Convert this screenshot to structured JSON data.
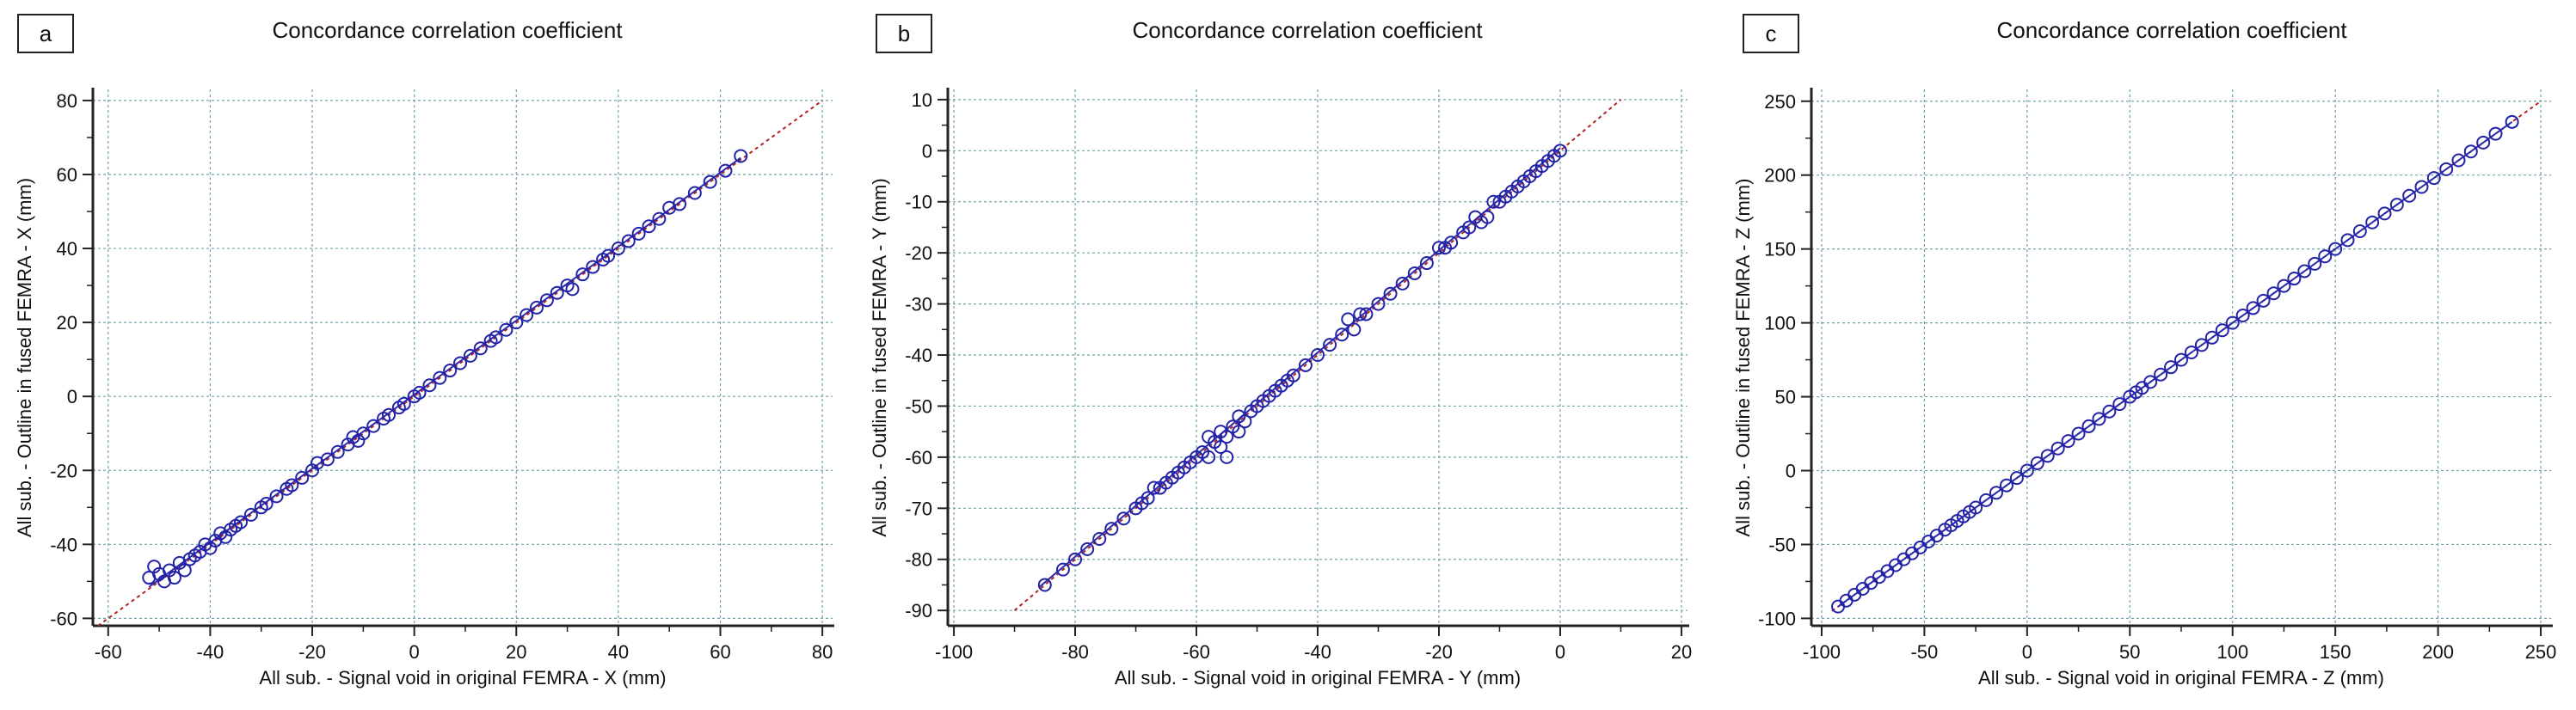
{
  "chart_data": [
    {
      "type": "scatter",
      "panel_label": "a",
      "title": "Concordance correlation coefficient",
      "xlabel": "All sub. - Signal void in original FEMRA - X (mm)",
      "ylabel": "All sub. - Outline in fused FEMRA - X (mm)",
      "xlim": [
        -63,
        82
      ],
      "ylim": [
        -62,
        83
      ],
      "xticks": [
        -60,
        -40,
        -20,
        0,
        20,
        40,
        60,
        80
      ],
      "yticks": [
        -60,
        -40,
        -20,
        0,
        20,
        40,
        60,
        80
      ],
      "grid": true,
      "identity_line": [
        [
          -62,
          -62
        ],
        [
          80,
          80
        ]
      ],
      "fit_line": [
        [
          -52,
          -51.5
        ],
        [
          64,
          64.5
        ]
      ],
      "points": [
        [
          -52,
          -49
        ],
        [
          -51,
          -46
        ],
        [
          -50,
          -48
        ],
        [
          -49,
          -50
        ],
        [
          -48,
          -47
        ],
        [
          -47,
          -49
        ],
        [
          -46,
          -45
        ],
        [
          -45,
          -47
        ],
        [
          -44,
          -44
        ],
        [
          -43,
          -43
        ],
        [
          -42,
          -42
        ],
        [
          -41,
          -40
        ],
        [
          -40,
          -41
        ],
        [
          -39,
          -39
        ],
        [
          -38,
          -37
        ],
        [
          -37,
          -38
        ],
        [
          -36,
          -36
        ],
        [
          -35,
          -35
        ],
        [
          -34,
          -34
        ],
        [
          -32,
          -32
        ],
        [
          -30,
          -30
        ],
        [
          -29,
          -29
        ],
        [
          -27,
          -27
        ],
        [
          -25,
          -25
        ],
        [
          -24,
          -24
        ],
        [
          -22,
          -22
        ],
        [
          -20,
          -20
        ],
        [
          -19,
          -18
        ],
        [
          -17,
          -17
        ],
        [
          -15,
          -15
        ],
        [
          -13,
          -13
        ],
        [
          -12,
          -11
        ],
        [
          -11,
          -12
        ],
        [
          -10,
          -10
        ],
        [
          -8,
          -8
        ],
        [
          -6,
          -6
        ],
        [
          -5,
          -5
        ],
        [
          -3,
          -3
        ],
        [
          -2,
          -2
        ],
        [
          0,
          0
        ],
        [
          1,
          1
        ],
        [
          3,
          3
        ],
        [
          5,
          5
        ],
        [
          7,
          7
        ],
        [
          9,
          9
        ],
        [
          11,
          11
        ],
        [
          13,
          13
        ],
        [
          15,
          15
        ],
        [
          16,
          16
        ],
        [
          18,
          18
        ],
        [
          20,
          20
        ],
        [
          22,
          22
        ],
        [
          24,
          24
        ],
        [
          26,
          26
        ],
        [
          28,
          28
        ],
        [
          30,
          30
        ],
        [
          31,
          29
        ],
        [
          33,
          33
        ],
        [
          35,
          35
        ],
        [
          37,
          37
        ],
        [
          38,
          38
        ],
        [
          40,
          40
        ],
        [
          42,
          42
        ],
        [
          44,
          44
        ],
        [
          46,
          46
        ],
        [
          48,
          48
        ],
        [
          50,
          51
        ],
        [
          52,
          52
        ],
        [
          55,
          55
        ],
        [
          58,
          58
        ],
        [
          61,
          61
        ],
        [
          64,
          65
        ]
      ]
    },
    {
      "type": "scatter",
      "panel_label": "b",
      "title": "Concordance correlation coefficient",
      "xlabel": "All sub. - Signal void in original FEMRA - Y (mm)",
      "ylabel": "All sub. - Outline in fused FEMRA - Y (mm)",
      "xlim": [
        -101,
        21
      ],
      "ylim": [
        -93,
        12
      ],
      "xticks": [
        -100,
        -80,
        -60,
        -40,
        -20,
        0,
        20
      ],
      "yticks": [
        -90,
        -80,
        -70,
        -60,
        -50,
        -40,
        -30,
        -20,
        -10,
        0,
        10
      ],
      "grid": true,
      "identity_line": [
        [
          -90,
          -90
        ],
        [
          10,
          10
        ]
      ],
      "fit_line": [
        [
          -86,
          -85.5
        ],
        [
          0,
          0.5
        ]
      ],
      "points": [
        [
          -85,
          -85
        ],
        [
          -82,
          -82
        ],
        [
          -80,
          -80
        ],
        [
          -78,
          -78
        ],
        [
          -76,
          -76
        ],
        [
          -74,
          -74
        ],
        [
          -72,
          -72
        ],
        [
          -70,
          -70
        ],
        [
          -69,
          -69
        ],
        [
          -68,
          -68
        ],
        [
          -67,
          -66
        ],
        [
          -66,
          -66
        ],
        [
          -65,
          -65
        ],
        [
          -64,
          -64
        ],
        [
          -63,
          -63
        ],
        [
          -62,
          -62
        ],
        [
          -61,
          -61
        ],
        [
          -60,
          -60
        ],
        [
          -59,
          -59
        ],
        [
          -58,
          -56
        ],
        [
          -58,
          -60
        ],
        [
          -57,
          -57
        ],
        [
          -56,
          -58
        ],
        [
          -56,
          -55
        ],
        [
          -55,
          -56
        ],
        [
          -55,
          -60
        ],
        [
          -54,
          -54
        ],
        [
          -53,
          -52
        ],
        [
          -53,
          -55
        ],
        [
          -52,
          -53
        ],
        [
          -51,
          -51
        ],
        [
          -50,
          -50
        ],
        [
          -49,
          -49
        ],
        [
          -48,
          -48
        ],
        [
          -47,
          -47
        ],
        [
          -46,
          -46
        ],
        [
          -45,
          -45
        ],
        [
          -44,
          -44
        ],
        [
          -42,
          -42
        ],
        [
          -40,
          -40
        ],
        [
          -38,
          -38
        ],
        [
          -36,
          -36
        ],
        [
          -35,
          -33
        ],
        [
          -34,
          -35
        ],
        [
          -33,
          -32
        ],
        [
          -32,
          -32
        ],
        [
          -30,
          -30
        ],
        [
          -28,
          -28
        ],
        [
          -26,
          -26
        ],
        [
          -24,
          -24
        ],
        [
          -22,
          -22
        ],
        [
          -20,
          -19
        ],
        [
          -19,
          -19
        ],
        [
          -18,
          -18
        ],
        [
          -16,
          -16
        ],
        [
          -15,
          -15
        ],
        [
          -14,
          -13
        ],
        [
          -13,
          -14
        ],
        [
          -12,
          -13
        ],
        [
          -11,
          -10
        ],
        [
          -10,
          -10
        ],
        [
          -9,
          -9
        ],
        [
          -8,
          -8
        ],
        [
          -7,
          -7
        ],
        [
          -6,
          -6
        ],
        [
          -5,
          -5
        ],
        [
          -4,
          -4
        ],
        [
          -3,
          -3
        ],
        [
          -2,
          -2
        ],
        [
          -1,
          -1
        ],
        [
          0,
          0
        ]
      ]
    },
    {
      "type": "scatter",
      "panel_label": "c",
      "title": "Concordance correlation coefficient",
      "xlabel": "All sub. - Signal void in original FEMRA - Z (mm)",
      "ylabel": "All sub. - Outline in fused FEMRA - Z (mm)",
      "xlim": [
        -105,
        255
      ],
      "ylim": [
        -105,
        258
      ],
      "xticks": [
        -100,
        -50,
        0,
        50,
        100,
        150,
        200,
        250
      ],
      "yticks": [
        -100,
        -50,
        0,
        50,
        100,
        150,
        200,
        250
      ],
      "grid": true,
      "identity_line": [
        [
          -95,
          -95
        ],
        [
          250,
          250
        ]
      ],
      "fit_line": [
        [
          -92,
          -92
        ],
        [
          236,
          236
        ]
      ],
      "points": [
        [
          -92,
          -92
        ],
        [
          -88,
          -88
        ],
        [
          -84,
          -84
        ],
        [
          -80,
          -80
        ],
        [
          -76,
          -76
        ],
        [
          -72,
          -72
        ],
        [
          -68,
          -68
        ],
        [
          -64,
          -64
        ],
        [
          -60,
          -60
        ],
        [
          -56,
          -56
        ],
        [
          -52,
          -52
        ],
        [
          -48,
          -48
        ],
        [
          -44,
          -44
        ],
        [
          -40,
          -40
        ],
        [
          -37,
          -37
        ],
        [
          -34,
          -34
        ],
        [
          -31,
          -31
        ],
        [
          -28,
          -28
        ],
        [
          -25,
          -25
        ],
        [
          -20,
          -20
        ],
        [
          -15,
          -15
        ],
        [
          -10,
          -10
        ],
        [
          -5,
          -5
        ],
        [
          0,
          0
        ],
        [
          5,
          5
        ],
        [
          10,
          10
        ],
        [
          15,
          15
        ],
        [
          20,
          20
        ],
        [
          25,
          25
        ],
        [
          30,
          30
        ],
        [
          35,
          35
        ],
        [
          40,
          40
        ],
        [
          45,
          45
        ],
        [
          50,
          50
        ],
        [
          53,
          53
        ],
        [
          56,
          56
        ],
        [
          60,
          60
        ],
        [
          65,
          65
        ],
        [
          70,
          70
        ],
        [
          75,
          75
        ],
        [
          80,
          80
        ],
        [
          85,
          85
        ],
        [
          90,
          90
        ],
        [
          95,
          95
        ],
        [
          100,
          100
        ],
        [
          105,
          105
        ],
        [
          110,
          110
        ],
        [
          115,
          115
        ],
        [
          120,
          120
        ],
        [
          125,
          125
        ],
        [
          130,
          130
        ],
        [
          135,
          135
        ],
        [
          140,
          140
        ],
        [
          145,
          145
        ],
        [
          150,
          150
        ],
        [
          156,
          156
        ],
        [
          162,
          162
        ],
        [
          168,
          168
        ],
        [
          174,
          174
        ],
        [
          180,
          180
        ],
        [
          186,
          186
        ],
        [
          192,
          192
        ],
        [
          198,
          198
        ],
        [
          204,
          204
        ],
        [
          210,
          210
        ],
        [
          216,
          216
        ],
        [
          222,
          222
        ],
        [
          228,
          228
        ],
        [
          236,
          236
        ]
      ]
    }
  ]
}
